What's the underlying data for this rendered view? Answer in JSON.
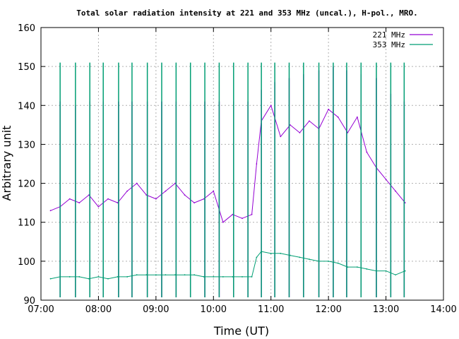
{
  "chart_data": {
    "type": "line",
    "title": "Total solar radiation intensity at 221 and 353 MHz (uncal.), H-pol., MRO.",
    "xlabel": "Time (UT)",
    "ylabel": "Arbitrary unit",
    "xlim": [
      "07:00",
      "14:00"
    ],
    "ylim": [
      90,
      160
    ],
    "x_ticks": [
      "07:00",
      "08:00",
      "09:00",
      "10:00",
      "11:00",
      "12:00",
      "13:00",
      "14:00"
    ],
    "y_ticks": [
      "90",
      "100",
      "110",
      "120",
      "130",
      "140",
      "150",
      "160"
    ],
    "grid": true,
    "legend_position": "top-right",
    "series": [
      {
        "name": "221 MHz",
        "color": "#9400d3",
        "x": [
          "07:10",
          "07:20",
          "07:30",
          "07:40",
          "07:50",
          "08:00",
          "08:10",
          "08:20",
          "08:30",
          "08:40",
          "08:50",
          "09:00",
          "09:10",
          "09:20",
          "09:30",
          "09:40",
          "09:50",
          "10:00",
          "10:10",
          "10:20",
          "10:30",
          "10:40",
          "10:45",
          "10:50",
          "11:00",
          "11:10",
          "11:20",
          "11:30",
          "11:40",
          "11:50",
          "12:00",
          "12:10",
          "12:20",
          "12:30",
          "12:40",
          "12:50",
          "13:00",
          "13:10",
          "13:20"
        ],
        "y": [
          113,
          114,
          116,
          115,
          117,
          114,
          116,
          115,
          118,
          120,
          117,
          116,
          118,
          120,
          117,
          115,
          116,
          118,
          110,
          112,
          111,
          112,
          125,
          136,
          140,
          132,
          135,
          133,
          136,
          134,
          139,
          137,
          133,
          137,
          128,
          124,
          121,
          118,
          115
        ],
        "spikes_x": [
          "07:20",
          "07:36",
          "07:51",
          "08:05",
          "08:21",
          "08:35",
          "08:51",
          "09:06",
          "09:21",
          "09:36",
          "09:51",
          "10:06",
          "10:21",
          "10:36",
          "10:50",
          "11:04",
          "11:19",
          "11:34",
          "11:50",
          "12:05",
          "12:19",
          "12:34",
          "12:50",
          "13:05",
          "13:19"
        ],
        "spikes_y": [
          141,
          140,
          141,
          141,
          141,
          141,
          141,
          141,
          141,
          141,
          141,
          141,
          141,
          141,
          144,
          146,
          147,
          148,
          149,
          150,
          149,
          148,
          147,
          143,
          141
        ]
      },
      {
        "name": "353 MHz",
        "color": "#009e73",
        "x": [
          "07:10",
          "07:20",
          "07:30",
          "07:40",
          "07:50",
          "08:00",
          "08:10",
          "08:20",
          "08:30",
          "08:40",
          "08:50",
          "09:00",
          "09:10",
          "09:20",
          "09:30",
          "09:40",
          "09:50",
          "10:00",
          "10:10",
          "10:20",
          "10:30",
          "10:40",
          "10:45",
          "10:50",
          "11:00",
          "11:10",
          "11:20",
          "11:30",
          "11:40",
          "11:50",
          "12:00",
          "12:10",
          "12:20",
          "12:30",
          "12:40",
          "12:50",
          "13:00",
          "13:10",
          "13:20"
        ],
        "y": [
          95.5,
          96,
          96,
          96,
          95.5,
          96,
          95.5,
          96,
          96,
          96.5,
          96.5,
          96.5,
          96.5,
          96.5,
          96.5,
          96.5,
          96,
          96,
          96,
          96,
          96,
          96,
          101,
          102.5,
          102,
          102,
          101.5,
          101,
          100.5,
          100,
          100,
          99.5,
          98.5,
          98.5,
          98,
          97.5,
          97.5,
          96.5,
          97.5
        ],
        "spikes_x": [
          "07:20",
          "07:36",
          "07:51",
          "08:05",
          "08:21",
          "08:35",
          "08:51",
          "09:06",
          "09:21",
          "09:36",
          "09:51",
          "10:06",
          "10:21",
          "10:36",
          "10:50",
          "11:04",
          "11:19",
          "11:34",
          "11:50",
          "12:05",
          "12:19",
          "12:34",
          "12:50",
          "13:05",
          "13:19"
        ],
        "spikes_y": [
          151,
          151,
          151,
          151,
          151,
          151,
          151,
          151,
          151,
          151,
          151,
          151,
          151,
          151,
          151,
          151,
          151,
          151,
          151,
          151,
          151,
          151,
          151,
          151,
          151
        ]
      }
    ]
  }
}
